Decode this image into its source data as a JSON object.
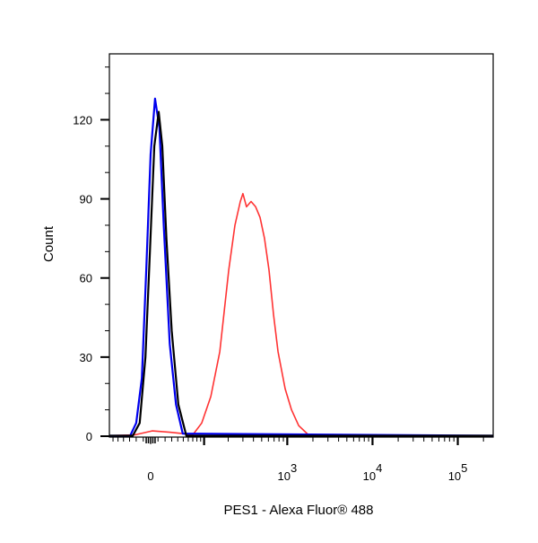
{
  "chart_data": {
    "type": "line",
    "title": "",
    "xlabel": "PES1 - Alexa Fluor® 488",
    "ylabel": "Count",
    "xscale": "biexponential",
    "xlim": [
      -68,
      260000
    ],
    "ylim": [
      0,
      145
    ],
    "yticks": [
      0,
      30,
      60,
      90,
      120
    ],
    "xtick_labels": [
      {
        "value": 0,
        "base": "0",
        "exp": ""
      },
      {
        "value": 1000,
        "base": "10",
        "exp": "3"
      },
      {
        "value": 10000,
        "base": "10",
        "exp": "4"
      },
      {
        "value": 100000,
        "base": "10",
        "exp": "5"
      }
    ],
    "grid": false,
    "series": [
      {
        "name": "red",
        "color": "#ff3333",
        "x": [
          -68,
          -22,
          2,
          27,
          49,
          70,
          93,
          122,
          158,
          203,
          241,
          279,
          300,
          331,
          375,
          424,
          478,
          540,
          610,
          690,
          780,
          945,
          1120,
          1360,
          1815,
          260000
        ],
        "y": [
          0,
          0.5,
          2,
          1.5,
          1,
          0.5,
          5,
          15,
          32,
          63,
          80,
          89,
          92,
          87,
          89,
          87,
          83,
          75,
          63,
          46,
          32,
          18,
          10,
          4,
          0,
          0
        ]
      },
      {
        "name": "blue",
        "color": "#0000ee",
        "x": [
          -68,
          -29,
          -20,
          -12,
          -6,
          0,
          6,
          12,
          18,
          27,
          37,
          49,
          260000
        ],
        "y": [
          0,
          0,
          5,
          22,
          63,
          107,
          128,
          117,
          80,
          35,
          12,
          1,
          0
        ]
      },
      {
        "name": "black",
        "color": "#000000",
        "x": [
          -68,
          -25,
          -15,
          -7,
          -1,
          5,
          11,
          16,
          22,
          30,
          41,
          56,
          260000
        ],
        "y": [
          0,
          0,
          5,
          30,
          70,
          110,
          123,
          110,
          75,
          40,
          12,
          0,
          0
        ]
      }
    ]
  }
}
